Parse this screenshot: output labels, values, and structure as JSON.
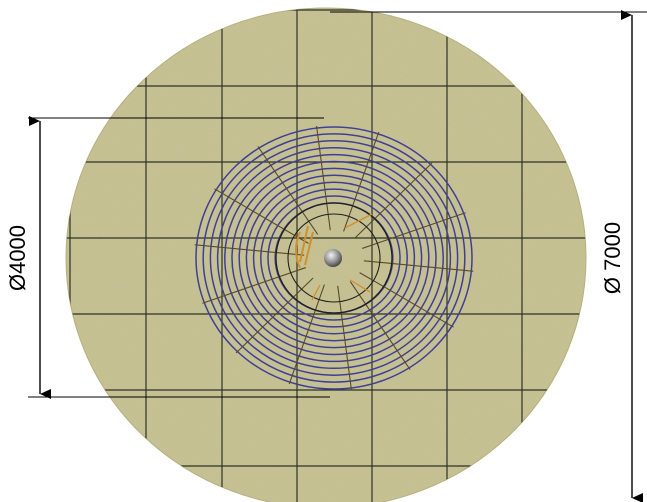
{
  "dimensions": {
    "inner_diameter_label": "Ø4000",
    "outer_diameter_label": "Ø 7000"
  },
  "colors": {
    "concrete_slab": "#c9c493",
    "grid_lines": "#2d3326",
    "spiral_rings": "#3f3f96",
    "radial_bars": "#5a4a28",
    "core_rings": "#1f1f1f",
    "core_detail": "#d08f2a",
    "center_post": "#8a8a8a",
    "dimension_lines": "#000000"
  },
  "icons": {
    "center": "center-post-icon"
  }
}
